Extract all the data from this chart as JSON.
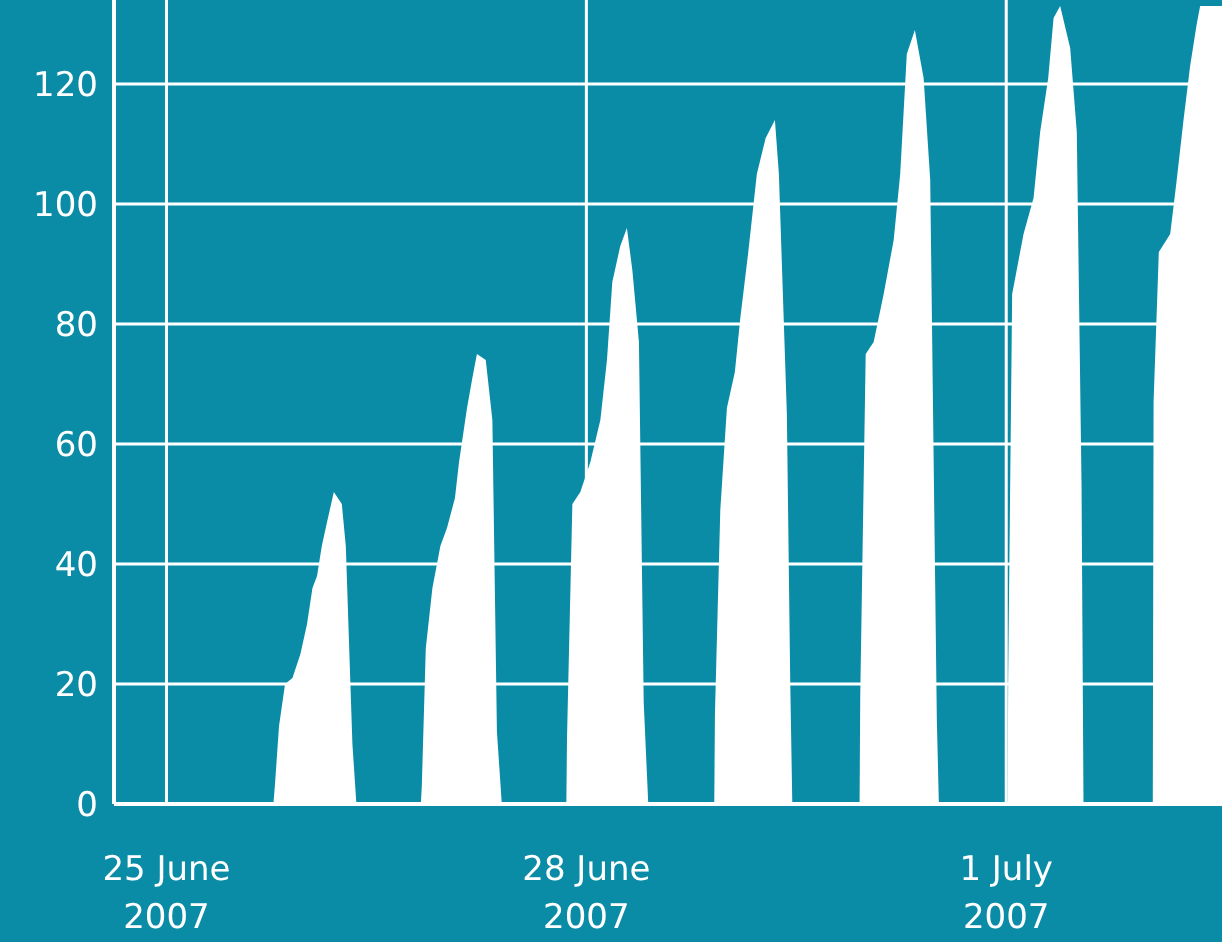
{
  "chart_data": {
    "type": "area",
    "color": "#ffffff",
    "x": [
      "2007-06-24T15:00",
      "2007-06-25T18:20",
      "2007-06-25T18:35",
      "2007-06-25T19:18",
      "2007-06-25T20:20",
      "2007-06-25T21:36",
      "2007-06-25T22:58",
      "2007-06-26T00:06",
      "2007-06-26T01:02",
      "2007-06-26T01:49",
      "2007-06-26T02:38",
      "2007-06-26T03:32",
      "2007-06-26T04:42",
      "2007-06-26T06:04",
      "2007-06-26T06:45",
      "2007-06-26T07:53",
      "2007-06-26T08:34",
      "2007-06-26T19:37",
      "2007-06-26T19:47",
      "2007-06-26T20:28",
      "2007-06-26T21:36",
      "2007-06-26T22:58",
      "2007-06-27T00:06",
      "2007-06-27T01:28",
      "2007-06-27T02:10",
      "2007-06-27T03:32",
      "2007-06-27T04:27",
      "2007-06-27T05:14",
      "2007-06-27T06:45",
      "2007-06-27T07:53",
      "2007-06-27T08:40",
      "2007-06-27T09:30",
      "2007-06-27T20:34",
      "2007-06-27T20:41",
      "2007-06-27T21:36",
      "2007-06-27T22:58",
      "2007-06-28T00:41",
      "2007-06-28T02:24",
      "2007-06-28T03:32",
      "2007-06-28T04:27",
      "2007-06-28T05:49",
      "2007-06-28T06:57",
      "2007-06-28T07:53",
      "2007-06-28T09:01",
      "2007-06-28T09:50",
      "2007-06-28T10:37",
      "2007-06-28T21:56",
      "2007-06-28T22:03",
      "2007-06-28T22:58",
      "2007-06-29T00:06",
      "2007-06-29T01:28",
      "2007-06-29T02:24",
      "2007-06-29T03:46",
      "2007-06-29T05:14",
      "2007-06-29T06:45",
      "2007-06-29T08:20",
      "2007-06-29T09:01",
      "2007-06-29T10:23",
      "2007-06-29T10:58",
      "2007-06-29T11:19",
      "2007-06-29T22:51",
      "2007-06-29T22:58",
      "2007-06-29T23:54",
      "2007-06-30T01:16",
      "2007-06-30T02:59",
      "2007-06-30T04:42",
      "2007-06-30T05:49",
      "2007-06-30T06:57",
      "2007-06-30T08:20",
      "2007-06-30T09:50",
      "2007-06-30T10:58",
      "2007-06-30T12:06",
      "2007-06-30T12:27",
      "2007-07-01T00:14",
      "2007-07-01T00:20",
      "2007-07-01T01:01",
      "2007-07-01T02:58",
      "2007-07-01T04:41",
      "2007-07-01T05:49",
      "2007-07-01T07:12",
      "2007-07-01T08:07",
      "2007-07-01T09:15",
      "2007-07-01T10:58",
      "2007-07-01T12:06",
      "2007-07-01T12:55",
      "2007-07-01T13:15",
      "2007-07-02T01:08",
      "2007-07-02T01:16",
      "2007-07-02T02:10",
      "2007-07-02T04:07",
      "2007-07-02T05:14",
      "2007-07-02T06:24",
      "2007-07-02T07:32",
      "2007-07-02T08:40",
      "2007-07-02T09:15",
      "2007-07-02T13:00"
    ],
    "values": [
      0,
      0,
      3,
      13,
      20,
      21,
      25,
      30,
      36,
      38,
      43,
      47,
      52,
      50,
      43,
      10,
      0,
      0,
      3,
      26,
      36,
      43,
      46,
      51,
      57,
      66,
      71,
      75,
      74,
      64,
      12,
      0,
      0,
      11,
      50,
      52,
      57,
      64,
      74,
      87,
      93,
      96,
      89,
      77,
      17,
      0,
      0,
      15,
      49,
      66,
      72,
      81,
      92,
      105,
      111,
      114,
      105,
      65,
      20,
      0,
      0,
      18,
      75,
      77,
      85,
      94,
      105,
      125,
      129,
      121,
      104,
      14,
      0,
      0,
      21,
      85,
      95,
      101,
      112,
      121,
      131,
      133,
      126,
      112,
      53,
      0,
      0,
      67,
      92,
      95,
      104,
      114,
      123,
      130,
      133,
      133
    ],
    "xlim": [
      "2007-06-24T15:00",
      "2007-07-02T13:00"
    ],
    "xticks": [
      {
        "value": "2007-06-25",
        "label": "25 June 2007"
      },
      {
        "value": "2007-06-28",
        "label": "28 June 2007"
      },
      {
        "value": "2007-07-01",
        "label": "1 July 2007"
      }
    ],
    "ylim": [
      0,
      134
    ],
    "yticks": [
      0,
      20,
      40,
      60,
      80,
      100,
      120
    ],
    "grid": true
  }
}
